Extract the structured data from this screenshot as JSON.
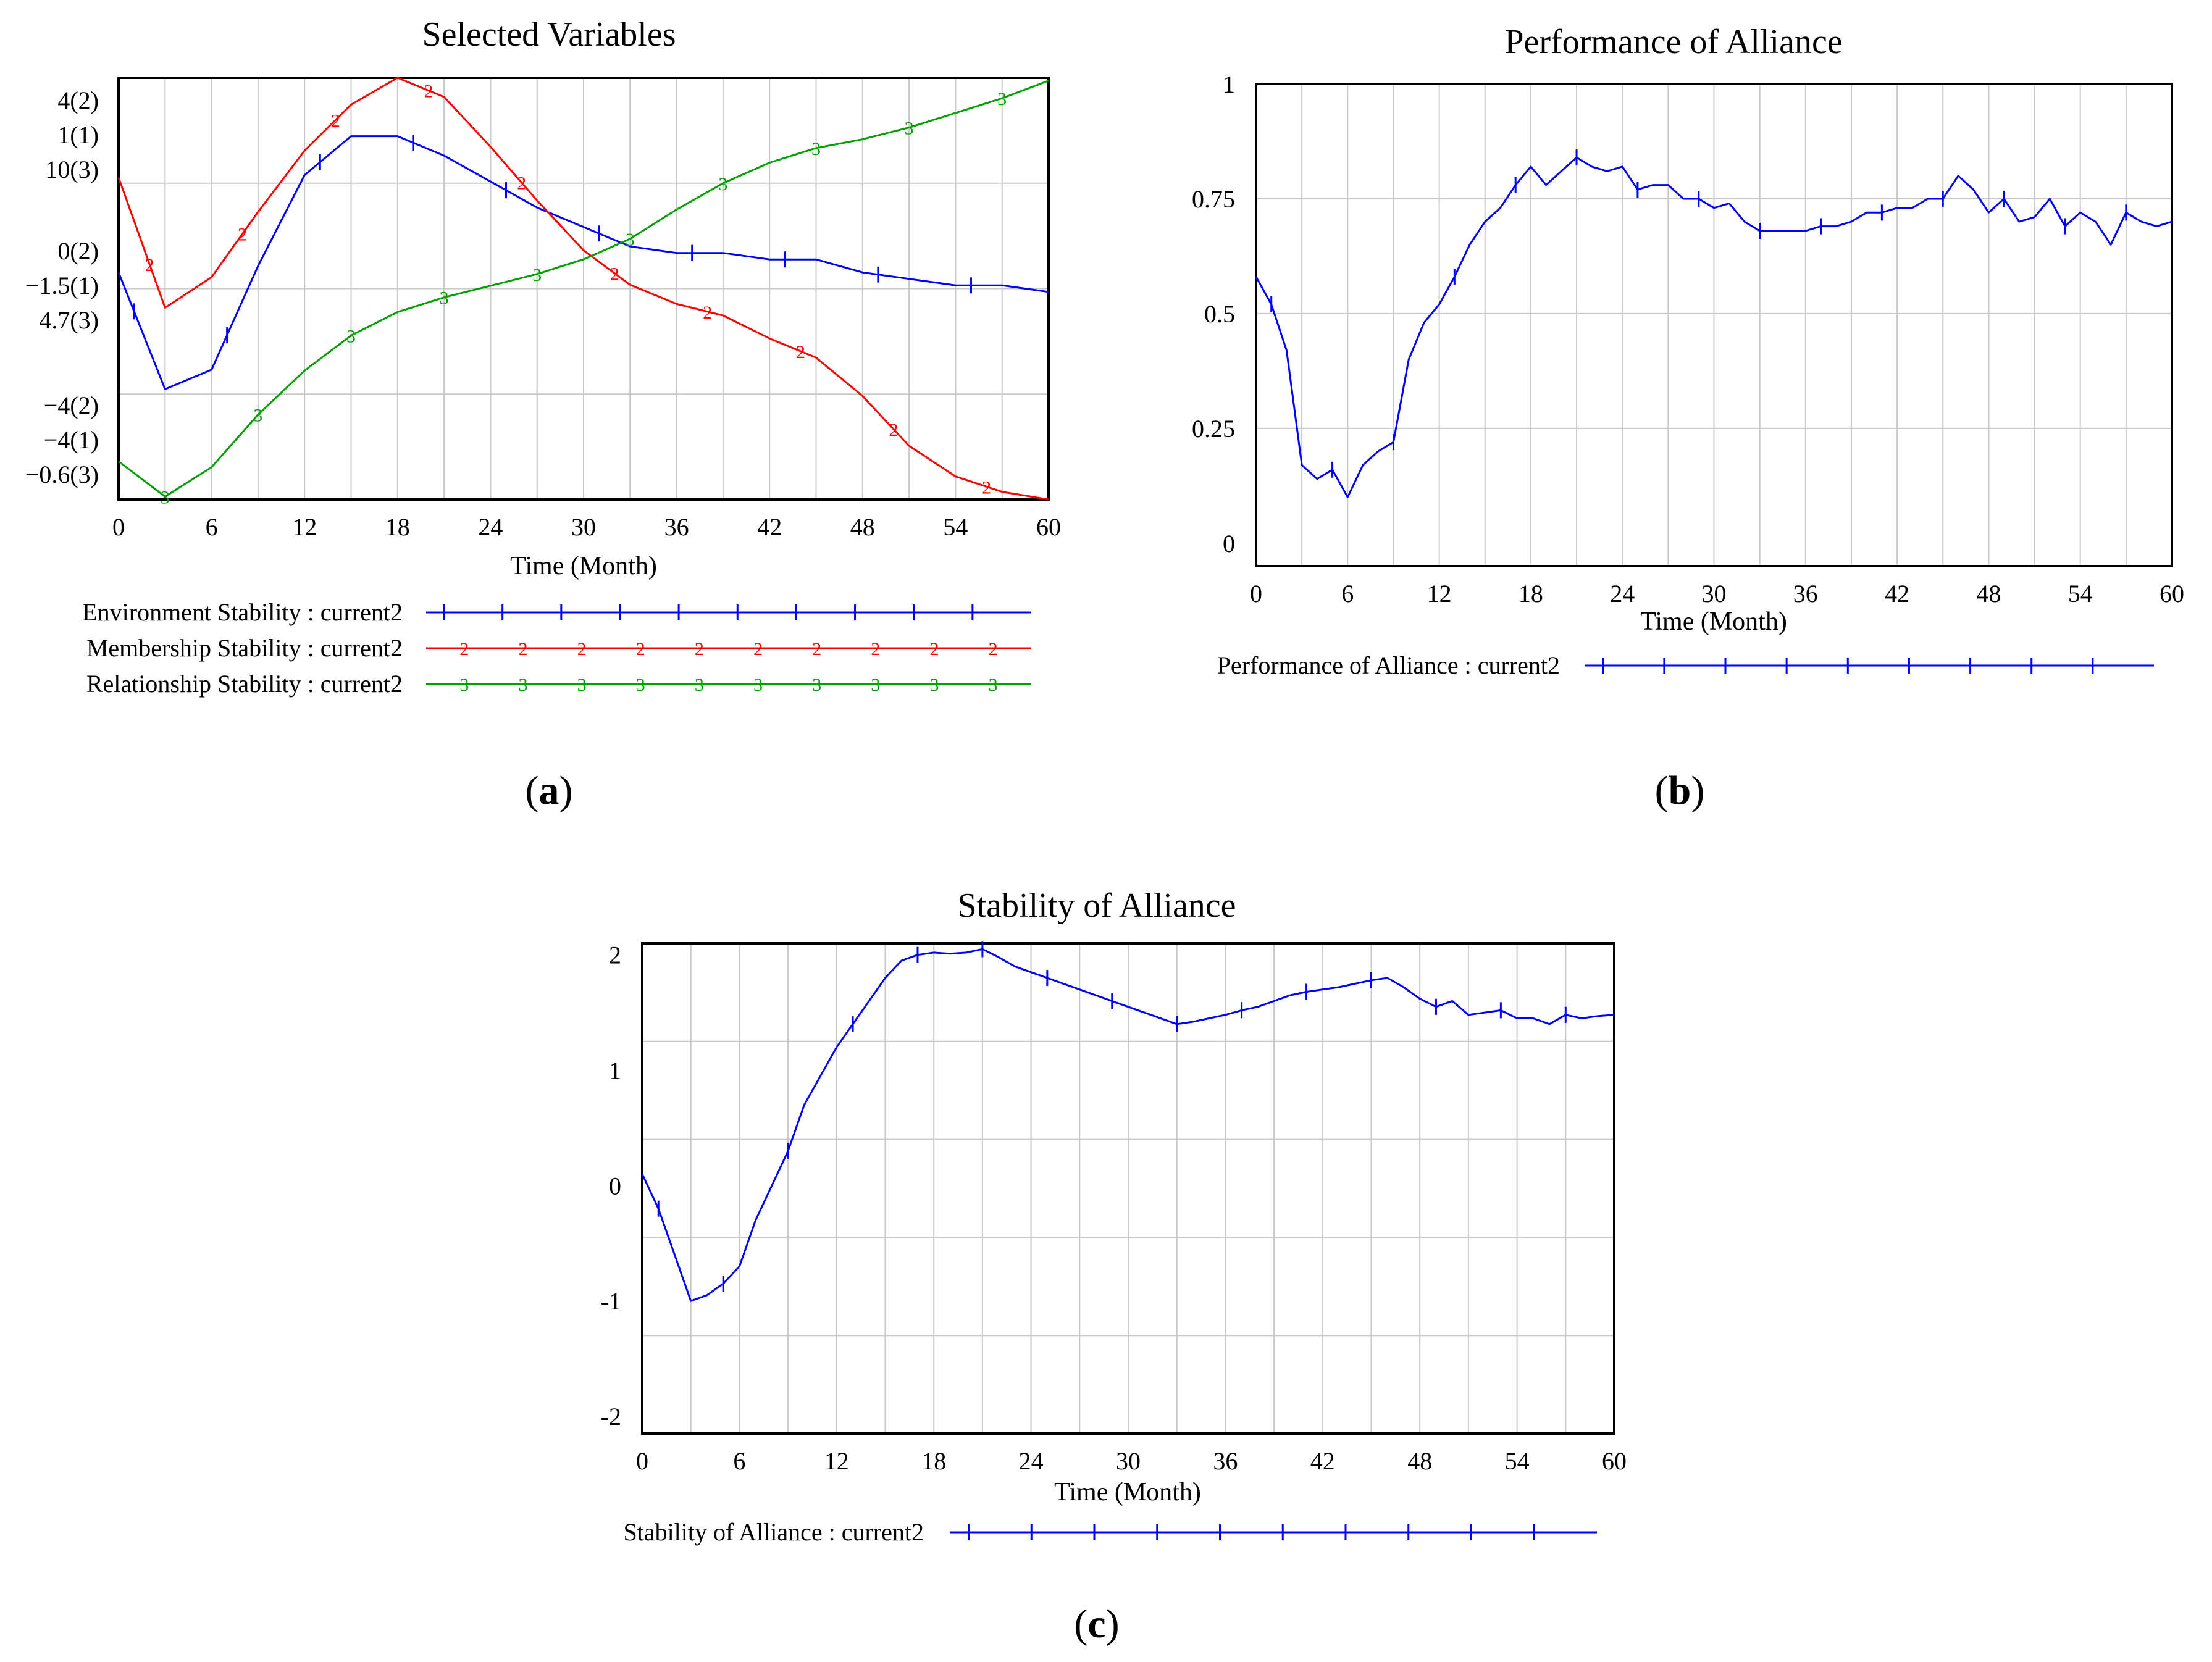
{
  "colors": {
    "blue": "#0000ff",
    "red": "#ff0000",
    "green": "#00a000",
    "grid": "#c8c8c8",
    "frame": "#000000"
  },
  "chart_data": [
    {
      "id": "a",
      "type": "line",
      "panel_label": "a",
      "title": "Selected Variables",
      "xlabel": "Time (Month)",
      "xlim": [
        0,
        60
      ],
      "xticks": [
        "0",
        "6",
        "12",
        "18",
        "24",
        "30",
        "36",
        "42",
        "48",
        "54",
        "60"
      ],
      "x": [
        0,
        3,
        6,
        9,
        12,
        15,
        18,
        21,
        24,
        27,
        30,
        33,
        36,
        39,
        42,
        45,
        48,
        51,
        54,
        57,
        60
      ],
      "series": [
        {
          "name": "Environment Stability : current2",
          "marker": "1",
          "color": "#0000ff",
          "axis_labels": [
            "1(1)",
            "-1.5(1)",
            "-4(1)"
          ],
          "ylim": [
            -5,
            1.5
          ],
          "values": [
            -1.5,
            -3.3,
            -3.0,
            -1.4,
            0.0,
            0.6,
            0.6,
            0.3,
            -0.1,
            -0.5,
            -0.8,
            -1.1,
            -1.2,
            -1.2,
            -1.3,
            -1.3,
            -1.5,
            -1.6,
            -1.7,
            -1.7,
            -1.8
          ]
        },
        {
          "name": "Membership Stability : current2",
          "marker": "2",
          "color": "#ff0000",
          "axis_labels": [
            "4(2)",
            "0(2)",
            "-4(2)"
          ],
          "ylim": [
            -6,
            5
          ],
          "values": [
            2.4,
            -1.0,
            -0.2,
            1.5,
            3.1,
            4.3,
            5.0,
            4.5,
            3.2,
            1.8,
            0.5,
            -0.4,
            -0.9,
            -1.2,
            -1.8,
            -2.3,
            -3.3,
            -4.6,
            -5.4,
            -5.8,
            -6.0
          ]
        },
        {
          "name": "Relationship Stability : current2",
          "marker": "3",
          "color": "#00a000",
          "axis_labels": [
            "10(3)",
            "4.7(3)",
            "-0.6(3)"
          ],
          "ylim": [
            -1.9,
            12.5
          ],
          "values": [
            -0.6,
            -1.8,
            -0.8,
            1.0,
            2.5,
            3.7,
            4.5,
            5.0,
            5.4,
            5.8,
            6.3,
            7.0,
            8.0,
            8.9,
            9.6,
            10.1,
            10.4,
            10.8,
            11.3,
            11.8,
            12.4
          ]
        }
      ]
    },
    {
      "id": "b",
      "type": "line",
      "panel_label": "b",
      "title": "Performance of Alliance",
      "xlabel": "Time (Month)",
      "xlim": [
        0,
        60
      ],
      "ylim": [
        -0.05,
        1
      ],
      "xticks": [
        "0",
        "6",
        "12",
        "18",
        "24",
        "30",
        "36",
        "42",
        "48",
        "54",
        "60"
      ],
      "yticks": [
        "1",
        "0.75",
        "0.5",
        "0.25",
        "0"
      ],
      "ytick_values": [
        1,
        0.75,
        0.5,
        0.25,
        0
      ],
      "series": [
        {
          "name": "Performance of Alliance : current2",
          "marker": "1",
          "color": "#0000ff",
          "x": [
            0,
            1,
            2,
            3,
            4,
            5,
            6,
            7,
            8,
            9,
            10,
            11,
            12,
            13,
            14,
            15,
            16,
            17,
            18,
            19,
            20,
            21,
            22,
            23,
            24,
            25,
            26,
            27,
            28,
            29,
            30,
            31,
            32,
            33,
            34,
            35,
            36,
            37,
            38,
            39,
            40,
            41,
            42,
            43,
            44,
            45,
            46,
            47,
            48,
            49,
            50,
            51,
            52,
            53,
            54,
            55,
            56,
            57,
            58,
            59,
            60
          ],
          "values": [
            0.58,
            0.52,
            0.42,
            0.17,
            0.14,
            0.16,
            0.1,
            0.17,
            0.2,
            0.22,
            0.4,
            0.48,
            0.52,
            0.58,
            0.65,
            0.7,
            0.73,
            0.78,
            0.82,
            0.78,
            0.81,
            0.84,
            0.82,
            0.81,
            0.82,
            0.77,
            0.78,
            0.78,
            0.75,
            0.75,
            0.73,
            0.74,
            0.7,
            0.68,
            0.68,
            0.68,
            0.68,
            0.69,
            0.69,
            0.7,
            0.72,
            0.72,
            0.73,
            0.73,
            0.75,
            0.75,
            0.8,
            0.77,
            0.72,
            0.75,
            0.7,
            0.71,
            0.75,
            0.69,
            0.72,
            0.7,
            0.65,
            0.72,
            0.7,
            0.69,
            0.7
          ]
        }
      ]
    },
    {
      "id": "c",
      "type": "line",
      "panel_label": "c",
      "title": "Stability of Alliance",
      "xlabel": "Time (Month)",
      "xlim": [
        0,
        60
      ],
      "ylim": [
        -2.15,
        2.1
      ],
      "xticks": [
        "0",
        "6",
        "12",
        "18",
        "24",
        "30",
        "36",
        "42",
        "48",
        "54",
        "60"
      ],
      "yticks": [
        "2",
        "1",
        "0",
        "-1",
        "-2"
      ],
      "ytick_values": [
        2,
        1,
        0,
        -1,
        -2
      ],
      "series": [
        {
          "name": "Stability of Alliance : current2",
          "marker": "1",
          "color": "#0000ff",
          "x": [
            0,
            1,
            2,
            3,
            4,
            5,
            6,
            7,
            8,
            9,
            10,
            11,
            12,
            13,
            14,
            15,
            16,
            17,
            18,
            19,
            20,
            21,
            22,
            23,
            24,
            25,
            26,
            27,
            28,
            29,
            30,
            31,
            32,
            33,
            34,
            35,
            36,
            37,
            38,
            39,
            40,
            41,
            42,
            43,
            44,
            45,
            46,
            47,
            48,
            49,
            50,
            51,
            52,
            53,
            54,
            55,
            56,
            57,
            58,
            59,
            60
          ],
          "values": [
            0.1,
            -0.2,
            -0.6,
            -1.0,
            -0.95,
            -0.85,
            -0.7,
            -0.3,
            0.0,
            0.3,
            0.7,
            0.95,
            1.2,
            1.4,
            1.6,
            1.8,
            1.95,
            2.0,
            2.02,
            2.01,
            2.02,
            2.05,
            1.98,
            1.9,
            1.85,
            1.8,
            1.75,
            1.7,
            1.65,
            1.6,
            1.55,
            1.5,
            1.45,
            1.4,
            1.42,
            1.45,
            1.48,
            1.52,
            1.55,
            1.6,
            1.65,
            1.68,
            1.7,
            1.72,
            1.75,
            1.78,
            1.8,
            1.72,
            1.62,
            1.55,
            1.6,
            1.48,
            1.5,
            1.52,
            1.45,
            1.45,
            1.4,
            1.48,
            1.45,
            1.47,
            1.48
          ]
        }
      ]
    }
  ]
}
